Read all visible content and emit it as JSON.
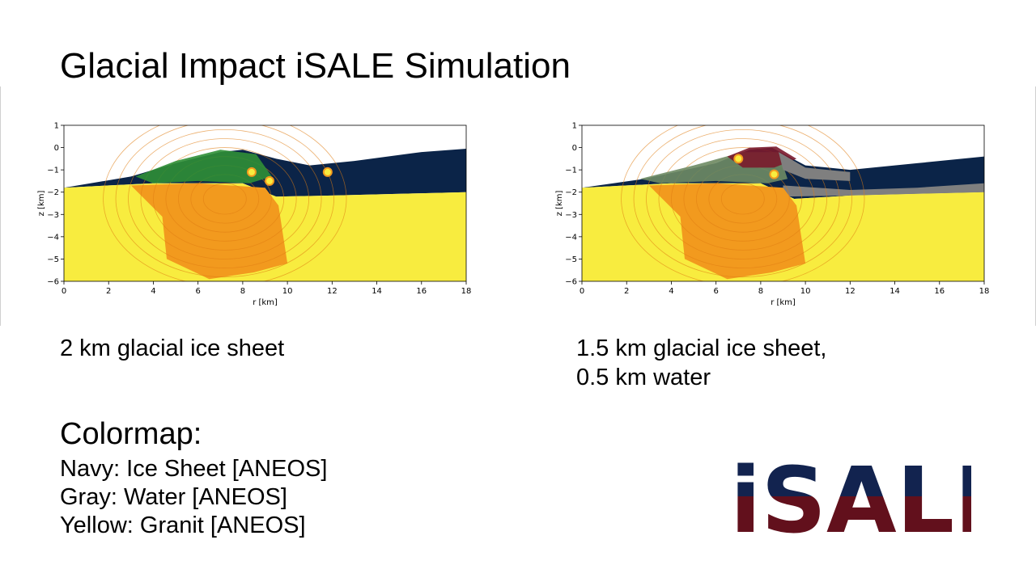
{
  "slide": {
    "title": "Glacial Impact iSALE Simulation",
    "captions": {
      "left": "2 km glacial ice sheet",
      "right_line1": "1.5 km glacial ice sheet,",
      "right_line2": "0.5 km water"
    },
    "colormap": {
      "title": "Colormap:",
      "items": [
        "Navy: Ice Sheet [ANEOS]",
        "Gray: Water [ANEOS]",
        "Yellow: Granit [ANEOS]"
      ]
    },
    "logo": {
      "text": "iSALE",
      "top_color": "#12234f",
      "bottom_color": "#62101c"
    }
  },
  "colors": {
    "ice": "#0b2448",
    "water": "#7f7f7f",
    "granite": "#f8ec3f",
    "melt": "#f29a1e",
    "ejecta_green": "#2f8f36",
    "ejecta_red": "#7a1a2c",
    "ejecta_gray_green": "#6e8b64"
  },
  "chart_data": [
    {
      "type": "heatmap",
      "title": "",
      "xlabel": "r [km]",
      "ylabel": "z [km]",
      "xlim": [
        0,
        18
      ],
      "ylim": [
        -6,
        1
      ],
      "xticks": [
        "0",
        "2",
        "4",
        "6",
        "8",
        "10",
        "12",
        "14",
        "16",
        "18"
      ],
      "yticks": [
        "1",
        "0",
        "−1",
        "−2",
        "−3",
        "−4",
        "−5",
        "−6"
      ],
      "layers": [
        "Ice Sheet",
        "Granite",
        "Melt / transient crater",
        "Ejecta curtain"
      ],
      "ice_top": [
        [
          0,
          -1.8
        ],
        [
          3,
          -1.3
        ],
        [
          5,
          -0.7
        ],
        [
          7,
          -0.2
        ],
        [
          8,
          -0.1
        ],
        [
          9.5,
          -0.5
        ],
        [
          11,
          -0.8
        ],
        [
          13,
          -0.6
        ],
        [
          16,
          -0.2
        ],
        [
          18,
          -0.05
        ]
      ],
      "granite_top": [
        [
          0,
          -1.8
        ],
        [
          4,
          -1.6
        ],
        [
          8,
          -1.6
        ],
        [
          9.5,
          -2.2
        ],
        [
          12,
          -2.15
        ],
        [
          16,
          -2.05
        ],
        [
          18,
          -2.0
        ]
      ],
      "crater_floor": [
        [
          4.4,
          -3.1
        ],
        [
          4.6,
          -5.0
        ],
        [
          6.5,
          -5.9
        ],
        [
          8.5,
          -5.6
        ],
        [
          10,
          -5.2
        ],
        [
          9.6,
          -2.6
        ]
      ]
    },
    {
      "type": "heatmap",
      "title": "",
      "xlabel": "r [km]",
      "ylabel": "z [km]",
      "xlim": [
        0,
        18
      ],
      "ylim": [
        -6,
        1
      ],
      "xticks": [
        "0",
        "2",
        "4",
        "6",
        "8",
        "10",
        "12",
        "14",
        "16",
        "18"
      ],
      "yticks": [
        "1",
        "0",
        "−1",
        "−2",
        "−3",
        "−4",
        "−5",
        "−6"
      ],
      "layers": [
        "Ice Sheet",
        "Water",
        "Granite",
        "Melt / transient crater",
        "Ejecta curtain"
      ],
      "ice_top": [
        [
          0,
          -1.8
        ],
        [
          2.8,
          -1.4
        ],
        [
          6,
          -0.7
        ],
        [
          7.5,
          -0.1
        ],
        [
          8.5,
          0.0
        ],
        [
          10,
          -0.8
        ],
        [
          12,
          -1.0
        ],
        [
          15,
          -0.7
        ],
        [
          18,
          -0.4
        ]
      ],
      "water_top": [
        [
          9,
          -1.7
        ],
        [
          12,
          -1.9
        ],
        [
          15,
          -1.8
        ],
        [
          18,
          -1.6
        ]
      ],
      "granite_top": [
        [
          0,
          -1.8
        ],
        [
          4,
          -1.6
        ],
        [
          8,
          -1.6
        ],
        [
          9.5,
          -2.3
        ],
        [
          12,
          -2.15
        ],
        [
          16,
          -2.05
        ],
        [
          18,
          -2.0
        ]
      ],
      "crater_floor": [
        [
          4.4,
          -3.1
        ],
        [
          4.6,
          -5.0
        ],
        [
          6.5,
          -5.9
        ],
        [
          8.5,
          -5.6
        ],
        [
          10,
          -5.2
        ],
        [
          9.6,
          -2.6
        ]
      ]
    }
  ]
}
